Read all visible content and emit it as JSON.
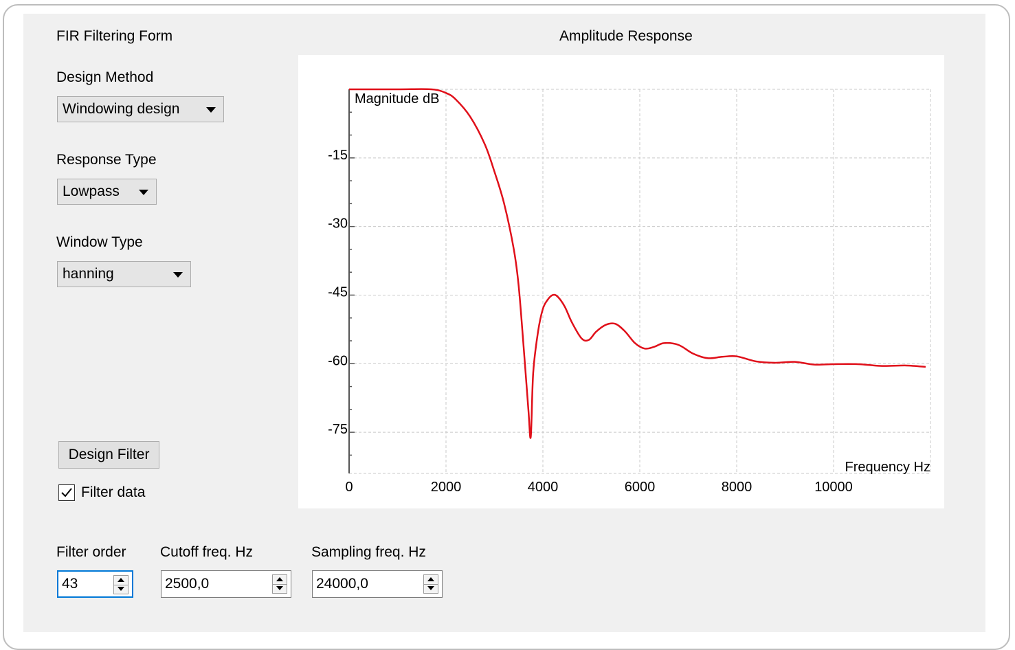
{
  "form": {
    "title": "FIR Filtering Form",
    "design_method": {
      "label": "Design Method",
      "value": "Windowing design"
    },
    "response_type": {
      "label": "Response Type",
      "value": "Lowpass"
    },
    "window_type": {
      "label": "Window Type",
      "value": "hanning"
    },
    "design_button": "Design Filter",
    "filter_data": {
      "label": "Filter data",
      "checked": true
    },
    "filter_order": {
      "label": "Filter order",
      "value": "43"
    },
    "cutoff": {
      "label": "Cutoff freq. Hz",
      "value": "2500,0"
    },
    "sampling": {
      "label": "Sampling freq. Hz",
      "value": "24000,0"
    }
  },
  "plot": {
    "title": "Amplitude Response",
    "ylabel": "Magnitude dB",
    "xlabel": "Frequency Hz",
    "curve_color": "#e0101a",
    "grid_color": "#c8c8c8"
  },
  "chart_data": {
    "type": "line",
    "title": "Amplitude Response",
    "xlabel": "Frequency Hz",
    "ylabel": "Magnitude dB",
    "xlim": [
      0,
      12000
    ],
    "ylim": [
      -84,
      0
    ],
    "xticks": [
      0,
      2000,
      4000,
      6000,
      8000,
      10000
    ],
    "yticks": [
      -15,
      -30,
      -45,
      -60,
      -75
    ],
    "grid": true,
    "series": [
      {
        "x": [
          0,
          1000,
          1700,
          2000,
          2200,
          2500,
          2800,
          3000,
          3200,
          3400,
          3500,
          3600,
          3700,
          3750,
          3800,
          3900,
          4000,
          4100,
          4200,
          4300,
          4450,
          4600,
          4800,
          4950,
          5100,
          5300,
          5500,
          5700,
          5900,
          6100,
          6300,
          6500,
          6800,
          7100,
          7400,
          7700,
          8000,
          8400,
          8800,
          9200,
          9600,
          10000,
          10500,
          11000,
          11500,
          11900
        ],
        "values": [
          0,
          0,
          0,
          -0.8,
          -2.2,
          -6,
          -12,
          -18,
          -25,
          -35,
          -43,
          -56,
          -70,
          -76,
          -62,
          -53,
          -48,
          -46,
          -45,
          -45.3,
          -47.5,
          -51,
          -54.5,
          -54.8,
          -53,
          -51.5,
          -51.3,
          -53,
          -55.5,
          -56.7,
          -56.3,
          -55.5,
          -55.9,
          -57.8,
          -58.8,
          -58.5,
          -58.4,
          -59.5,
          -59.8,
          -59.6,
          -60.2,
          -60.1,
          -60.1,
          -60.5,
          -60.4,
          -60.7
        ]
      }
    ]
  }
}
